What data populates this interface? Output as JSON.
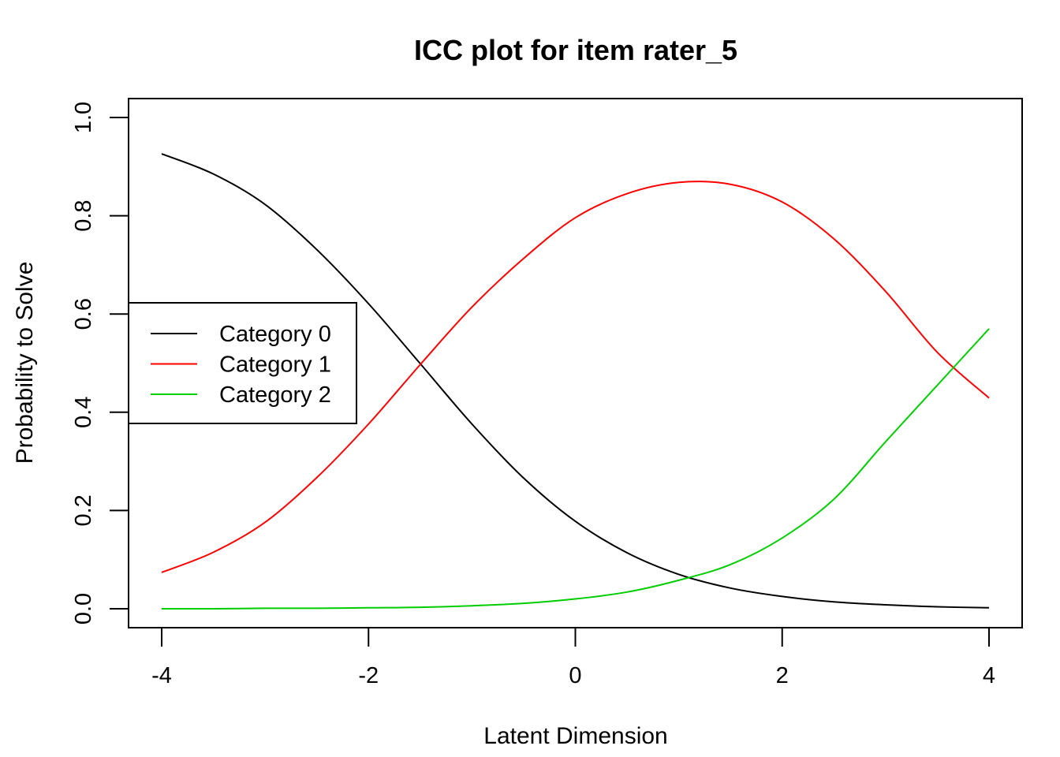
{
  "chart_data": {
    "type": "line",
    "title": "ICC plot for item rater_5",
    "xlabel": "Latent Dimension",
    "ylabel": "Probability to Solve",
    "xlim": [
      -4,
      4
    ],
    "ylim": [
      0,
      1
    ],
    "x_ticks": [
      -4,
      -2,
      0,
      2,
      4
    ],
    "y_ticks": [
      0.0,
      0.2,
      0.4,
      0.6,
      0.8,
      1.0
    ],
    "x_tick_labels": [
      "-4",
      "-2",
      "0",
      "2",
      "4"
    ],
    "y_tick_labels": [
      "0.0",
      "0.2",
      "0.4",
      "0.6",
      "0.8",
      "1.0"
    ],
    "grid": false,
    "legend_position": "left",
    "x": [
      -4.0,
      -3.5,
      -3.0,
      -2.5,
      -2.0,
      -1.5,
      -1.0,
      -0.5,
      0.0,
      0.5,
      1.0,
      1.5,
      2.0,
      2.5,
      3.0,
      3.5,
      4.0
    ],
    "series": [
      {
        "name": "Category 0",
        "color": "#000000",
        "values": [
          0.926,
          0.885,
          0.823,
          0.731,
          0.621,
          0.499,
          0.376,
          0.266,
          0.178,
          0.114,
          0.07,
          0.042,
          0.025,
          0.014,
          0.008,
          0.004,
          0.002
        ]
      },
      {
        "name": "Category 1",
        "color": "#ff0000",
        "values": [
          0.074,
          0.115,
          0.176,
          0.267,
          0.376,
          0.497,
          0.614,
          0.713,
          0.796,
          0.845,
          0.868,
          0.864,
          0.828,
          0.753,
          0.646,
          0.522,
          0.429
        ]
      },
      {
        "name": "Category 2",
        "color": "#00cd00",
        "values": [
          0.0,
          0.0,
          0.001,
          0.001,
          0.002,
          0.003,
          0.006,
          0.011,
          0.02,
          0.034,
          0.058,
          0.09,
          0.144,
          0.223,
          0.34,
          0.455,
          0.57
        ]
      }
    ]
  }
}
